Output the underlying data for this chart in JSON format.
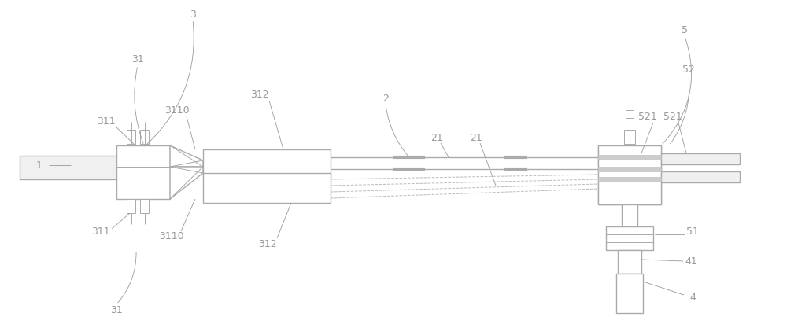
{
  "bg_color": "#ffffff",
  "line_color": "#aaaaaa",
  "label_color": "#999999",
  "lw": 1.0,
  "tlw": 0.7,
  "fig_width": 10.0,
  "fig_height": 4.12,
  "dpi": 100
}
